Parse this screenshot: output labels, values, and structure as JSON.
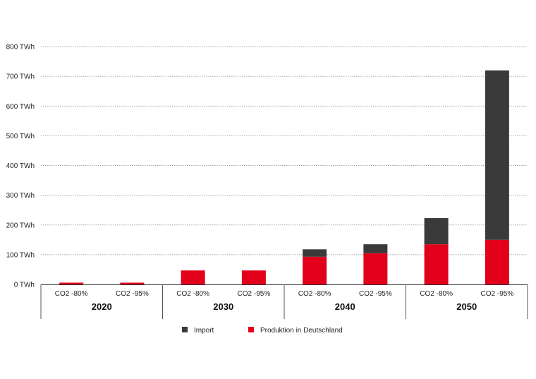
{
  "chart_data": {
    "type": "bar",
    "stacked": true,
    "y_unit": "TWh",
    "ylim": [
      0,
      800
    ],
    "y_ticks": [
      0,
      100,
      200,
      300,
      400,
      500,
      600,
      700,
      800
    ],
    "y_tick_labels": [
      "0 TWh",
      "100 TWh",
      "200 TWh",
      "300 TWh",
      "400 TWh",
      "500 TWh",
      "600 TWh",
      "700 TWh",
      "800 TWh"
    ],
    "grid": true,
    "groups": [
      "2020",
      "2030",
      "2040",
      "2050"
    ],
    "categories": [
      "CO2 -80%",
      "CO2 -95%",
      "CO2 -80%",
      "CO2 -95%",
      "CO2 -80%",
      "CO2 -95%",
      "CO2 -80%",
      "CO2 -95%"
    ],
    "category_group": [
      0,
      0,
      1,
      1,
      2,
      2,
      3,
      3
    ],
    "series": [
      {
        "name": "Produktion in Deutschland",
        "color": "#e2001a",
        "values": [
          6,
          6,
          47,
          47,
          93,
          105,
          135,
          150
        ]
      },
      {
        "name": "Import",
        "color": "#3a3a3a",
        "values": [
          0,
          0,
          0,
          0,
          25,
          30,
          88,
          570
        ]
      }
    ],
    "legend_order": [
      1,
      0
    ],
    "legend_position": "bottom-center"
  }
}
